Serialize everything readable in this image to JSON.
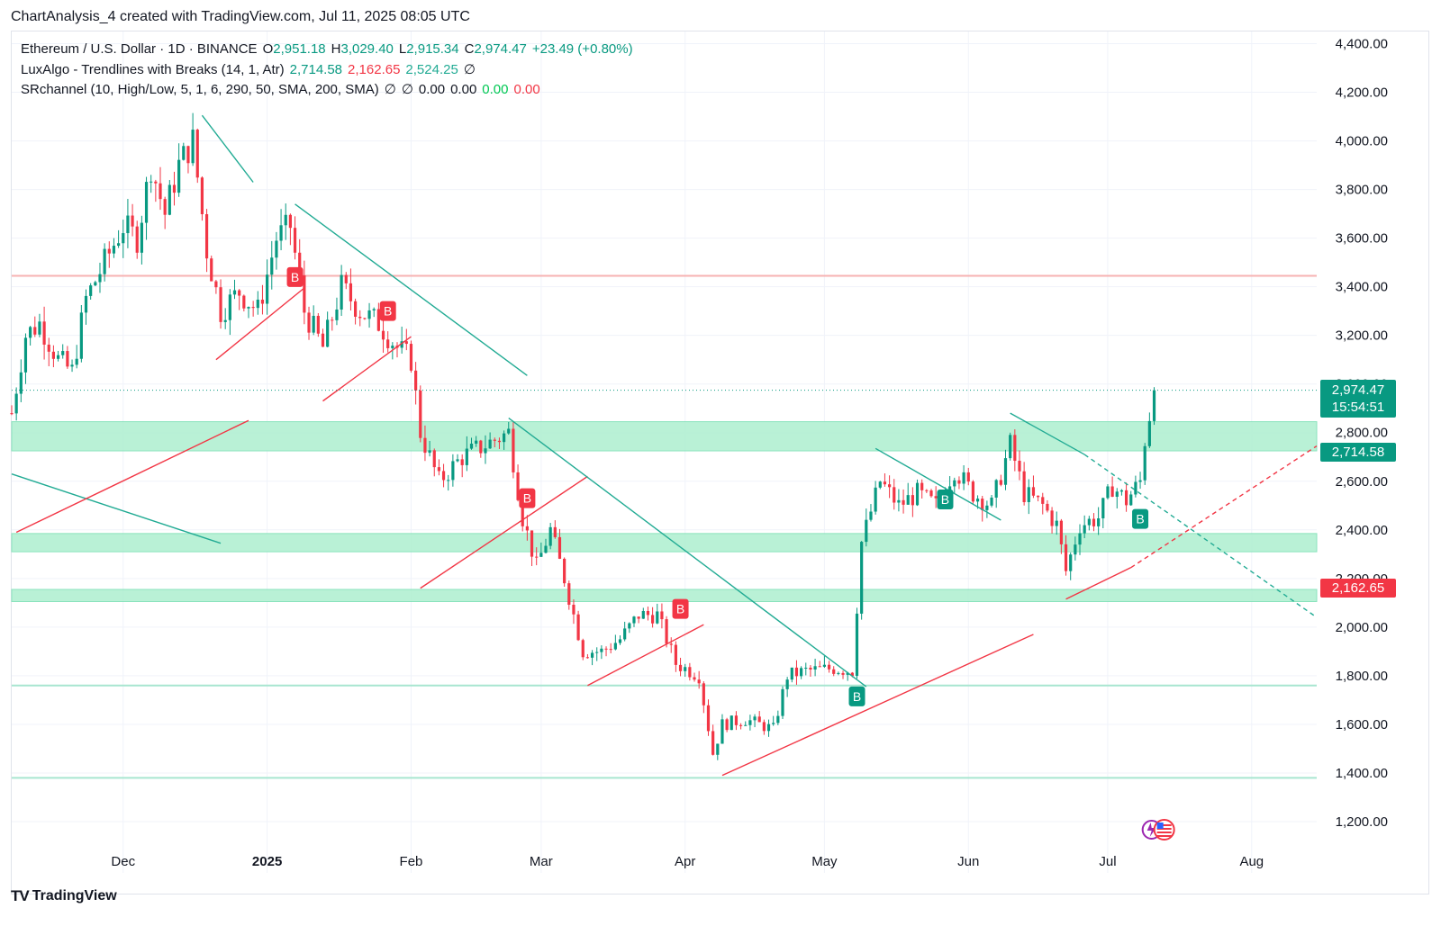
{
  "header": {
    "caption": "ChartAnalysis_4 created with TradingView.com, Jul 11, 2025 08:05 UTC"
  },
  "legend": {
    "symbol": "Ethereum / U.S. Dollar · 1D · BINANCE",
    "ohlc": {
      "o_label": "O",
      "o": "2,951.18",
      "h_label": "H",
      "h": "3,029.40",
      "l_label": "L",
      "l": "2,915.34",
      "c_label": "C",
      "c": "2,974.47",
      "change": "+23.49 (+0.80%)"
    },
    "luxalgo": {
      "name": "LuxAlgo - Trendlines with Breaks (14, 1, Atr)",
      "v1": "2,714.58",
      "v2": "2,162.65",
      "v3": "2,524.25",
      "sym": "∅"
    },
    "srchannel": {
      "name": "SRchannel (10, High/Low, 5, 1, 6, 290, 50, SMA, 200, SMA)",
      "s1": "∅",
      "s2": "∅",
      "v1": "0.00",
      "v2": "0.00",
      "v3": "0.00",
      "v4": "0.00"
    }
  },
  "price_tags": {
    "last": {
      "price": "2,974.47",
      "countdown": "15:54:51",
      "color": "#089981"
    },
    "upper": {
      "price": "2,714.58",
      "color": "#089981"
    },
    "lower": {
      "price": "2,162.65",
      "color": "#f23645"
    }
  },
  "footer": {
    "brand": "TradingView"
  },
  "chart_data": {
    "type": "candlestick",
    "symbol": "ETHUSD",
    "interval": "1D",
    "exchange": "BINANCE",
    "ylim": [
      1100,
      4450
    ],
    "y_ticks": [
      "4,400.00",
      "4,200.00",
      "4,000.00",
      "3,800.00",
      "3,600.00",
      "3,400.00",
      "3,200.00",
      "3,000.00",
      "2,800.00",
      "2,600.00",
      "2,400.00",
      "2,200.00",
      "2,000.00",
      "1,800.00",
      "1,600.00",
      "1,400.00",
      "1,200.00"
    ],
    "x_ticks": [
      {
        "label": "Dec",
        "date": "2024-12-01",
        "bold": false
      },
      {
        "label": "2025",
        "date": "2025-01-01",
        "bold": true
      },
      {
        "label": "Feb",
        "date": "2025-02-01",
        "bold": false
      },
      {
        "label": "Mar",
        "date": "2025-03-01",
        "bold": false
      },
      {
        "label": "Apr",
        "date": "2025-04-01",
        "bold": false
      },
      {
        "label": "May",
        "date": "2025-05-01",
        "bold": false
      },
      {
        "label": "Jun",
        "date": "2025-06-01",
        "bold": false
      },
      {
        "label": "Jul",
        "date": "2025-07-01",
        "bold": false
      },
      {
        "label": "Aug",
        "date": "2025-08-01",
        "bold": false
      }
    ],
    "xlim": [
      "2024-11-07",
      "2025-08-15"
    ],
    "last_candle_date": "2025-07-11",
    "last_close": 2974.47,
    "candle_anchors": [
      [
        "2024-11-07",
        2880
      ],
      [
        "2024-11-10",
        3200
      ],
      [
        "2024-11-13",
        3250
      ],
      [
        "2024-11-17",
        3100
      ],
      [
        "2024-11-20",
        3050
      ],
      [
        "2024-11-23",
        3350
      ],
      [
        "2024-11-27",
        3500
      ],
      [
        "2024-12-01",
        3650
      ],
      [
        "2024-12-04",
        3600
      ],
      [
        "2024-12-07",
        3900
      ],
      [
        "2024-12-10",
        3700
      ],
      [
        "2024-12-13",
        3900
      ],
      [
        "2024-12-16",
        4000
      ],
      [
        "2024-12-19",
        3550
      ],
      [
        "2024-12-22",
        3300
      ],
      [
        "2024-12-26",
        3380
      ],
      [
        "2024-12-30",
        3300
      ],
      [
        "2025-01-03",
        3600
      ],
      [
        "2025-01-06",
        3650
      ],
      [
        "2025-01-09",
        3300
      ],
      [
        "2025-01-13",
        3150
      ],
      [
        "2025-01-17",
        3400
      ],
      [
        "2025-01-21",
        3300
      ],
      [
        "2025-01-25",
        3250
      ],
      [
        "2025-01-29",
        3150
      ],
      [
        "2025-02-01",
        3100
      ],
      [
        "2025-02-03",
        2800
      ],
      [
        "2025-02-07",
        2600
      ],
      [
        "2025-02-12",
        2700
      ],
      [
        "2025-02-17",
        2750
      ],
      [
        "2025-02-22",
        2800
      ],
      [
        "2025-02-25",
        2450
      ],
      [
        "2025-02-28",
        2250
      ],
      [
        "2025-03-03",
        2400
      ],
      [
        "2025-03-06",
        2200
      ],
      [
        "2025-03-10",
        1900
      ],
      [
        "2025-03-14",
        1900
      ],
      [
        "2025-03-18",
        1950
      ],
      [
        "2025-03-22",
        2050
      ],
      [
        "2025-03-26",
        2050
      ],
      [
        "2025-03-30",
        1850
      ],
      [
        "2025-04-04",
        1800
      ],
      [
        "2025-04-07",
        1480
      ],
      [
        "2025-04-09",
        1600
      ],
      [
        "2025-04-14",
        1620
      ],
      [
        "2025-04-20",
        1580
      ],
      [
        "2025-04-23",
        1800
      ],
      [
        "2025-04-27",
        1820
      ],
      [
        "2025-05-03",
        1830
      ],
      [
        "2025-05-07",
        1820
      ],
      [
        "2025-05-09",
        2350
      ],
      [
        "2025-05-13",
        2600
      ],
      [
        "2025-05-17",
        2500
      ],
      [
        "2025-05-21",
        2550
      ],
      [
        "2025-05-25",
        2500
      ],
      [
        "2025-05-29",
        2650
      ],
      [
        "2025-06-02",
        2550
      ],
      [
        "2025-06-06",
        2500
      ],
      [
        "2025-06-10",
        2750
      ],
      [
        "2025-06-13",
        2550
      ],
      [
        "2025-06-17",
        2500
      ],
      [
        "2025-06-20",
        2420
      ],
      [
        "2025-06-22",
        2230
      ],
      [
        "2025-06-25",
        2420
      ],
      [
        "2025-06-29",
        2450
      ],
      [
        "2025-07-02",
        2580
      ],
      [
        "2025-07-05",
        2520
      ],
      [
        "2025-07-08",
        2600
      ],
      [
        "2025-07-09",
        2770
      ],
      [
        "2025-07-11",
        2974
      ]
    ],
    "zones": [
      {
        "from": 2725,
        "to": 2845,
        "color": "#b2f0d2"
      },
      {
        "from": 2310,
        "to": 2385,
        "color": "#b2f0d2"
      },
      {
        "from": 2105,
        "to": 2155,
        "color": "#b2f0d2"
      }
    ],
    "h_lines": [
      {
        "price": 3445,
        "color": "#f7b2b2"
      },
      {
        "price": 1760,
        "color": "#a8e6d0"
      },
      {
        "price": 1380,
        "color": "#a8e6d0"
      }
    ],
    "trendlines": [
      {
        "from": [
          "2024-11-07",
          2630
        ],
        "to": [
          "2024-12-22",
          2345
        ],
        "color": "#22ab94",
        "dash": false
      },
      {
        "from": [
          "2024-11-08",
          2390
        ],
        "to": [
          "2024-12-28",
          2850
        ],
        "color": "#f23645",
        "dash": false
      },
      {
        "from": [
          "2024-12-18",
          4105
        ],
        "to": [
          "2024-12-29",
          3830
        ],
        "color": "#22ab94",
        "dash": false
      },
      {
        "from": [
          "2024-12-21",
          3100
        ],
        "to": [
          "2025-01-09",
          3395
        ],
        "color": "#f23645",
        "dash": false
      },
      {
        "from": [
          "2025-01-07",
          3740
        ],
        "to": [
          "2025-02-26",
          3035
        ],
        "color": "#22ab94",
        "dash": false
      },
      {
        "from": [
          "2025-01-13",
          2930
        ],
        "to": [
          "2025-02-01",
          3195
        ],
        "color": "#f23645",
        "dash": false
      },
      {
        "from": [
          "2025-02-03",
          2160
        ],
        "to": [
          "2025-03-11",
          2620
        ],
        "color": "#f23645",
        "dash": false
      },
      {
        "from": [
          "2025-02-22",
          2860
        ],
        "to": [
          "2025-05-10",
          1755
        ],
        "color": "#22ab94",
        "dash": false
      },
      {
        "from": [
          "2025-03-11",
          1760
        ],
        "to": [
          "2025-04-05",
          2010
        ],
        "color": "#f23645",
        "dash": false
      },
      {
        "from": [
          "2025-04-09",
          1390
        ],
        "to": [
          "2025-06-15",
          1970
        ],
        "color": "#f23645",
        "dash": false
      },
      {
        "from": [
          "2025-05-12",
          2735
        ],
        "to": [
          "2025-06-08",
          2440
        ],
        "color": "#22ab94",
        "dash": false
      },
      {
        "from": [
          "2025-06-10",
          2880
        ],
        "to": [
          "2025-06-26",
          2710
        ],
        "color": "#22ab94",
        "dash": false
      },
      {
        "from": [
          "2025-06-26",
          2710
        ],
        "to": [
          "2025-08-15",
          2040
        ],
        "color": "#22ab94",
        "dash": true
      },
      {
        "from": [
          "2025-06-22",
          2115
        ],
        "to": [
          "2025-07-06",
          2245
        ],
        "color": "#f23645",
        "dash": false
      },
      {
        "from": [
          "2025-07-06",
          2245
        ],
        "to": [
          "2025-08-15",
          2745
        ],
        "color": "#f23645",
        "dash": true
      }
    ],
    "signals": [
      {
        "label": "B",
        "date": "2025-01-07",
        "price": 3440,
        "color": "#f23645"
      },
      {
        "label": "B",
        "date": "2025-01-27",
        "price": 3300,
        "color": "#f23645"
      },
      {
        "label": "B",
        "date": "2025-02-26",
        "price": 2530,
        "color": "#f23645"
      },
      {
        "label": "B",
        "date": "2025-03-31",
        "price": 2075,
        "color": "#f23645"
      },
      {
        "label": "B",
        "date": "2025-05-08",
        "price": 1715,
        "color": "#089981"
      },
      {
        "label": "B",
        "date": "2025-05-27",
        "price": 2525,
        "color": "#089981"
      },
      {
        "label": "B",
        "date": "2025-07-08",
        "price": 2445,
        "color": "#089981"
      }
    ],
    "last_price_line": 2974.47,
    "grid": true,
    "colors": {
      "up": "#089981",
      "down": "#f23645",
      "grid": "#f0f3fa",
      "axis_text": "#131722"
    }
  }
}
